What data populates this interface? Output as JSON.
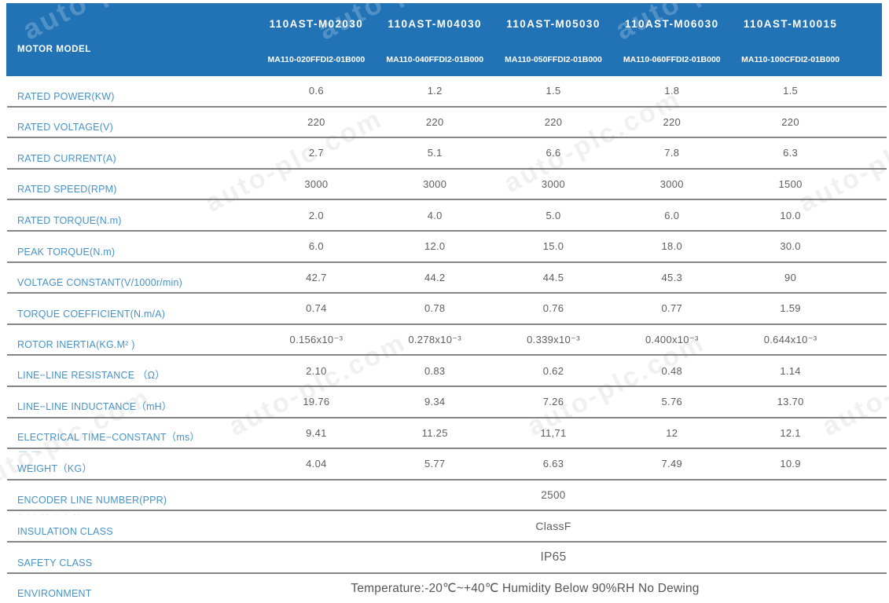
{
  "table": {
    "header": {
      "row_label": "MOTOR MODEL",
      "models": [
        {
          "series": "110AST-M02030",
          "code": "MA110-020FFDI2-01B000"
        },
        {
          "series": "110AST-M04030",
          "code": "MA110-040FFDI2-01B000"
        },
        {
          "series": "110AST-M05030",
          "code": "MA110-050FFDI2-01B000"
        },
        {
          "series": "110AST-M06030",
          "code": "MA110-060FFDI2-01B000"
        },
        {
          "series": "110AST-M10015",
          "code": "MA110-100CFDI2-01B000"
        }
      ]
    },
    "rows": [
      {
        "label": "RATED POWER(KW)",
        "values": [
          "0.6",
          "1.2",
          "1.5",
          "1.8",
          "1.5"
        ]
      },
      {
        "label": "RATED VOLTAGE(V)",
        "values": [
          "220",
          "220",
          "220",
          "220",
          "220"
        ]
      },
      {
        "label": "RATED CURRENT(A)",
        "values": [
          "2.7",
          "5.1",
          "6.6",
          "7.8",
          "6.3"
        ]
      },
      {
        "label": "RATED SPEED(RPM)",
        "values": [
          "3000",
          "3000",
          "3000",
          "3000",
          "1500"
        ]
      },
      {
        "label": "RATED TORQUE(N.m)",
        "values": [
          "2.0",
          "4.0",
          "5.0",
          "6.0",
          "10.0"
        ]
      },
      {
        "label": "PEAK TORQUE(N.m)",
        "values": [
          "6.0",
          "12.0",
          "15.0",
          "18.0",
          "30.0"
        ]
      },
      {
        "label": "VOLTAGE CONSTANT(V/1000r/min)",
        "values": [
          "42.7",
          "44.2",
          "44.5",
          "45.3",
          "90"
        ]
      },
      {
        "label": "TORQUE COEFFICIENT(N.m/A)",
        "values": [
          "0.74",
          "0.78",
          "0.76",
          "0.77",
          "1.59"
        ]
      },
      {
        "label": "ROTOR INERTIA(KG.M² )",
        "values": [
          "0.156x10⁻³",
          "0.278x10⁻³",
          "0.339x10⁻³",
          "0.400x10⁻³",
          "0.644x10⁻³"
        ]
      },
      {
        "label": "LINE−LINE RESISTANCE （Ω）",
        "values": [
          "2.10",
          "0.83",
          "0.62",
          "0.48",
          "1.14"
        ]
      },
      {
        "label": "LINE−LINE INDUCTANCE（mH）",
        "values": [
          "19.76",
          "9.34",
          "7.26",
          "5.76",
          "13.70"
        ]
      },
      {
        "label": "ELECTRICAL TIME−CONSTANT（ms）",
        "values": [
          "9.41",
          "11.25",
          "11,71",
          "12",
          "12.1"
        ]
      },
      {
        "label": "WEIGHT（KG）",
        "values": [
          "4.04",
          "5.77",
          "6.63",
          "7.49",
          "10.9"
        ]
      },
      {
        "label": "ENCODER LINE NUMBER(PPR)",
        "span_value": "2500",
        "span_class": "v-encoder"
      },
      {
        "label": "INSULATION CLASS",
        "span_value": "ClassF",
        "span_class": "v-insulation"
      },
      {
        "label": "SAFETY CLASS",
        "span_value": "IP65",
        "span_class": "v-safety"
      },
      {
        "label": "ENVIRONMENT",
        "span_value": "Temperature:-20℃~+40℃  Humidity Below 90%RH No Dewing",
        "span_class": "v-environment"
      }
    ]
  },
  "watermark": {
    "text": "auto-plc.com"
  },
  "artifacts": {
    "weight_row": "— —",
    "insulation_row": "· ·· ·· · · ··"
  },
  "colors": {
    "header_bg": "#2173b6",
    "header_text": "#ffffff",
    "label_text": "#4793c8",
    "value_text": "#5e5e5e",
    "divider": "#858585"
  }
}
